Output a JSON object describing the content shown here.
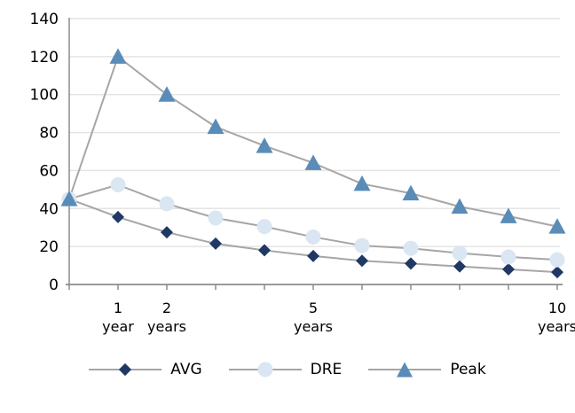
{
  "chart_data": {
    "type": "line",
    "title": "",
    "x_unit": "years",
    "x": [
      0,
      1,
      2,
      3,
      4,
      5,
      6,
      7,
      8,
      9,
      10
    ],
    "x_axis_labels": [
      {
        "year": 1,
        "lines": [
          "1",
          "year"
        ]
      },
      {
        "year": 2,
        "lines": [
          "2",
          "years"
        ]
      },
      {
        "year": 5,
        "lines": [
          "5",
          "years"
        ]
      },
      {
        "year": 10,
        "lines": [
          "10",
          "years"
        ]
      }
    ],
    "ylim": [
      0,
      140
    ],
    "yticks": [
      0,
      20,
      40,
      60,
      80,
      100,
      120,
      140
    ],
    "grid": true,
    "legend_position": "bottom",
    "series": [
      {
        "name": "AVG",
        "marker": "diamond",
        "color": "#1f3864",
        "values": [
          45,
          35.5,
          27.5,
          21.5,
          18,
          15,
          12.5,
          11,
          9.5,
          8,
          6.5
        ]
      },
      {
        "name": "DRE",
        "marker": "circle",
        "color": "#dae6f2",
        "values": [
          45,
          52.5,
          42.5,
          35,
          30.5,
          25,
          20.5,
          19,
          16.5,
          14.5,
          13
        ]
      },
      {
        "name": "Peak",
        "marker": "triangle",
        "color": "#5a8cb8",
        "values": [
          45,
          120,
          100,
          83,
          73,
          64,
          53,
          48,
          41,
          36,
          30.5
        ]
      }
    ],
    "colors": {
      "series_line": "#a6a6a6",
      "grid": "#e4e4e4",
      "axis": "#8c8c8c",
      "text": "#000000"
    }
  }
}
